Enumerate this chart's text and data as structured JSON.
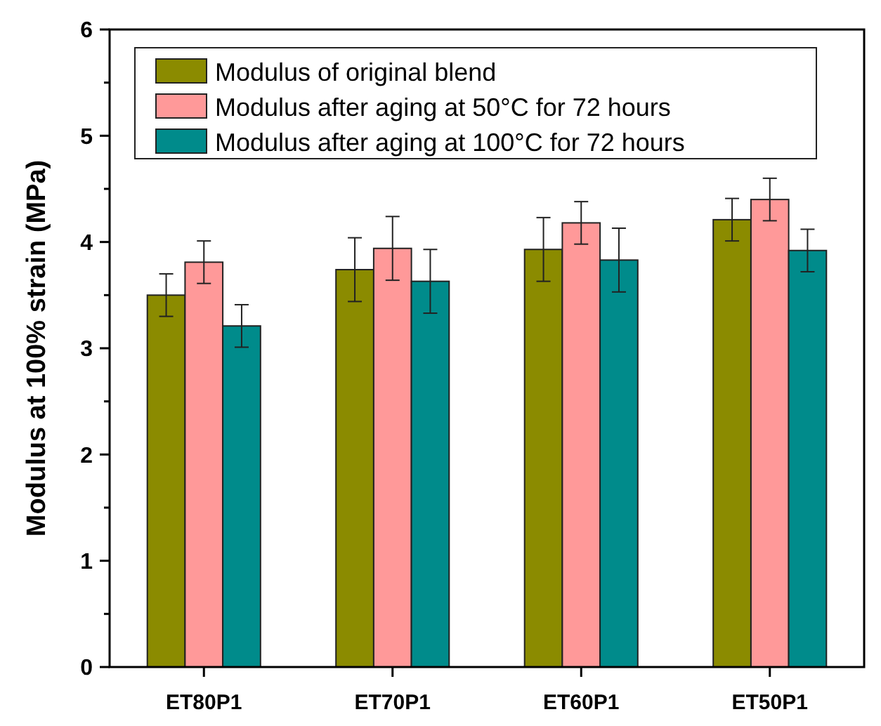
{
  "chart_data": {
    "type": "bar",
    "ylabel": "Modulus at 100% strain (MPa)",
    "categories": [
      "ET80P1",
      "ET70P1",
      "ET60P1",
      "ET50P1"
    ],
    "series": [
      {
        "name": "Modulus of original blend",
        "color": "#8b8b00",
        "values": [
          3.5,
          3.74,
          3.93,
          4.21
        ],
        "errors": [
          0.2,
          0.3,
          0.3,
          0.2
        ]
      },
      {
        "name": "Modulus after aging at 50°C  for 72 hours",
        "color": "#ff9999",
        "values": [
          3.81,
          3.94,
          4.18,
          4.4
        ],
        "errors": [
          0.2,
          0.3,
          0.2,
          0.2
        ]
      },
      {
        "name": "Modulus  after aging at 100°C  for 72 hours",
        "color": "#008b8b",
        "values": [
          3.21,
          3.63,
          3.83,
          3.92
        ],
        "errors": [
          0.2,
          0.3,
          0.3,
          0.2
        ]
      }
    ],
    "ylim": [
      0,
      6
    ],
    "yticks": [
      0,
      {
        "value": 0.5,
        "label": null
      },
      1,
      {
        "value": 1.5,
        "label": null
      },
      2,
      {
        "value": 2.5,
        "label": null
      },
      3,
      {
        "value": 3.5,
        "label": null
      },
      4,
      {
        "value": 4.5,
        "label": null
      },
      5,
      {
        "value": 5.5,
        "label": null
      },
      6
    ],
    "grid": false,
    "legend": "top left"
  }
}
